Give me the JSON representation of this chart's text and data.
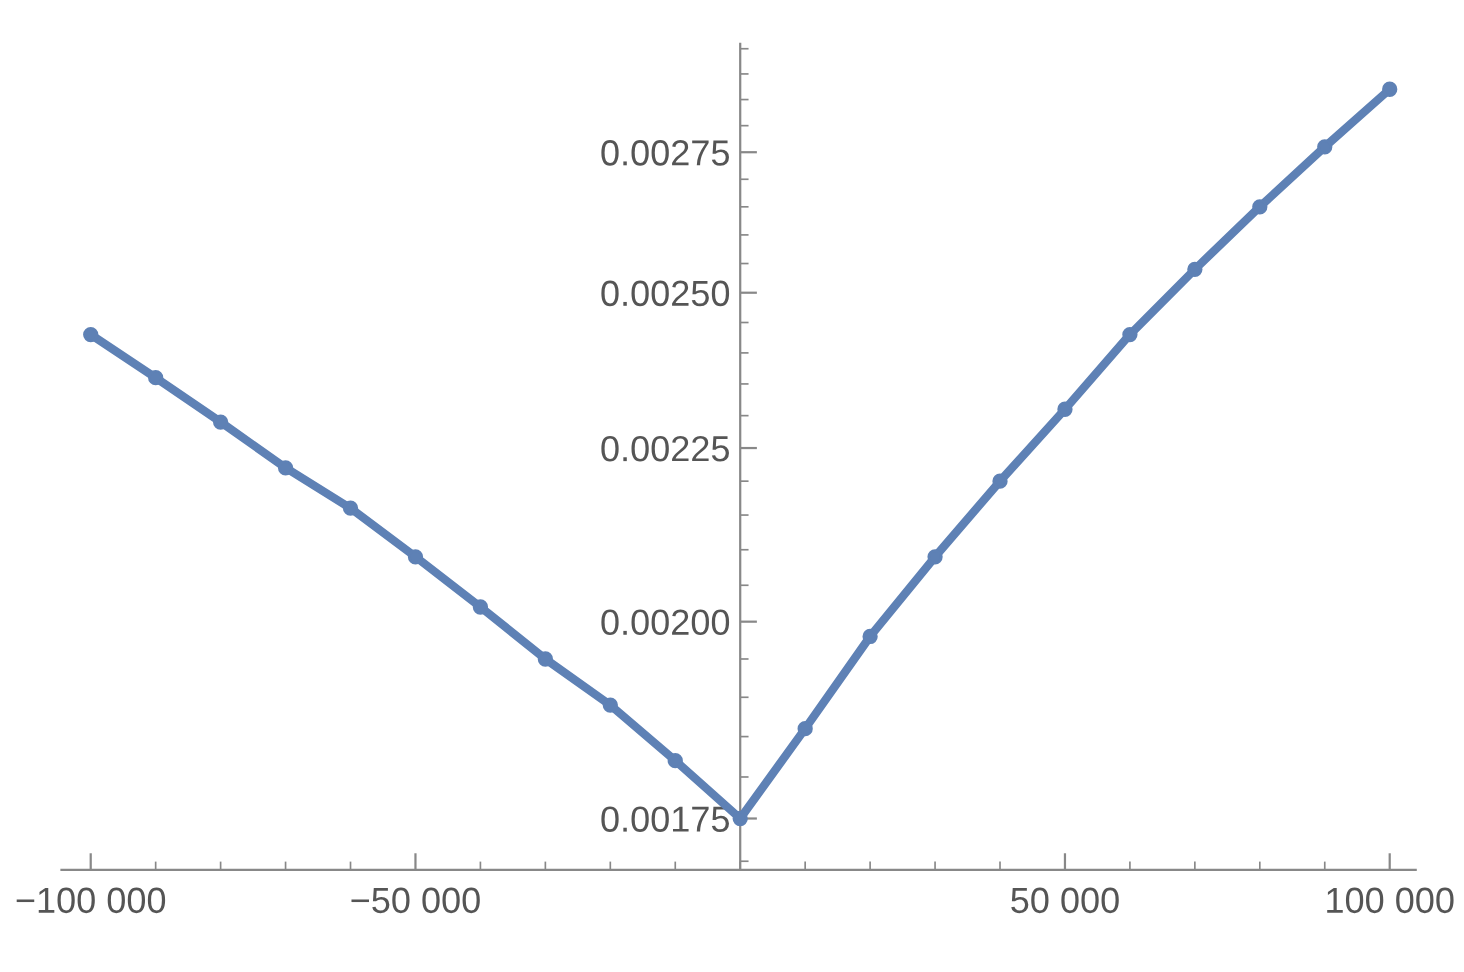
{
  "chart_data": {
    "type": "line",
    "log": "y",
    "marker": "circle",
    "grid": false,
    "x": [
      -100000,
      -90000,
      -80000,
      -70000,
      -60000,
      -50000,
      -40000,
      -30000,
      -20000,
      -10000,
      0,
      10000,
      20000,
      30000,
      40000,
      50000,
      60000,
      70000,
      80000,
      90000,
      100000
    ],
    "series": [
      {
        "color": "#5e81b5",
        "values": [
          0.00243,
          0.00236,
          0.00229,
          0.00222,
          0.00216,
          0.00209,
          0.00202,
          0.00195,
          0.00189,
          0.00182,
          0.00175,
          0.00186,
          0.00198,
          0.00209,
          0.0022,
          0.00231,
          0.00243,
          0.00254,
          0.00265,
          0.00276,
          0.00287
        ]
      }
    ],
    "xlim": [
      -104500,
      104000
    ],
    "ylim": [
      0.00169,
      0.00296
    ],
    "xticks": [
      {
        "value": -100000,
        "label": "−100 000"
      },
      {
        "value": -50000,
        "label": "−50 000"
      },
      {
        "value": 50000,
        "label": "50 000"
      },
      {
        "value": 100000,
        "label": "100 000"
      }
    ],
    "yticks": [
      {
        "value": 0.00175,
        "label": "0.00175"
      },
      {
        "value": 0.002,
        "label": "0.00200"
      },
      {
        "value": 0.00225,
        "label": "0.00225"
      },
      {
        "value": 0.0025,
        "label": "0.00250"
      },
      {
        "value": 0.00275,
        "label": "0.00275"
      }
    ]
  }
}
